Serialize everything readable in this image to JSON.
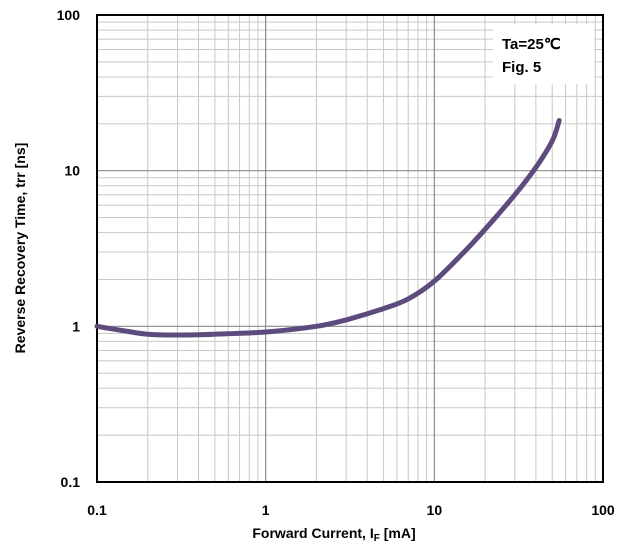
{
  "chart_data": {
    "type": "line",
    "x_scale": "log",
    "y_scale": "log",
    "xlim": [
      0.1,
      100
    ],
    "ylim": [
      0.1,
      100
    ],
    "grid": true,
    "legend": "none",
    "x_ticks": [
      {
        "value": 0.1,
        "label": "0.1"
      },
      {
        "value": 1,
        "label": "1"
      },
      {
        "value": 10,
        "label": "10"
      },
      {
        "value": 100,
        "label": "100"
      }
    ],
    "y_ticks": [
      {
        "value": 0.1,
        "label": "0.1"
      },
      {
        "value": 1,
        "label": "1"
      },
      {
        "value": 10,
        "label": "10"
      },
      {
        "value": 100,
        "label": "100"
      }
    ],
    "xlabel": {
      "main": "Forward Current, I",
      "sub": "F",
      "unit": " [mA]"
    },
    "ylabel": "Reverse Recovery Time, trr [ns]",
    "annotations": {
      "condition": "Ta=25℃",
      "figure": "Fig. 5"
    },
    "colors": {
      "line": "#5e4b7e",
      "grid": "#c8c8c8",
      "frame": "#000000"
    },
    "series": [
      {
        "x": [
          0.1,
          0.15,
          0.2,
          0.3,
          0.5,
          1,
          2,
          3,
          5,
          7,
          10,
          15,
          20,
          30,
          40,
          50,
          55
        ],
        "y": [
          1.0,
          0.93,
          0.89,
          0.88,
          0.89,
          0.92,
          1.0,
          1.1,
          1.3,
          1.5,
          1.95,
          3.0,
          4.2,
          7.0,
          10.5,
          15.5,
          21
        ]
      }
    ]
  }
}
